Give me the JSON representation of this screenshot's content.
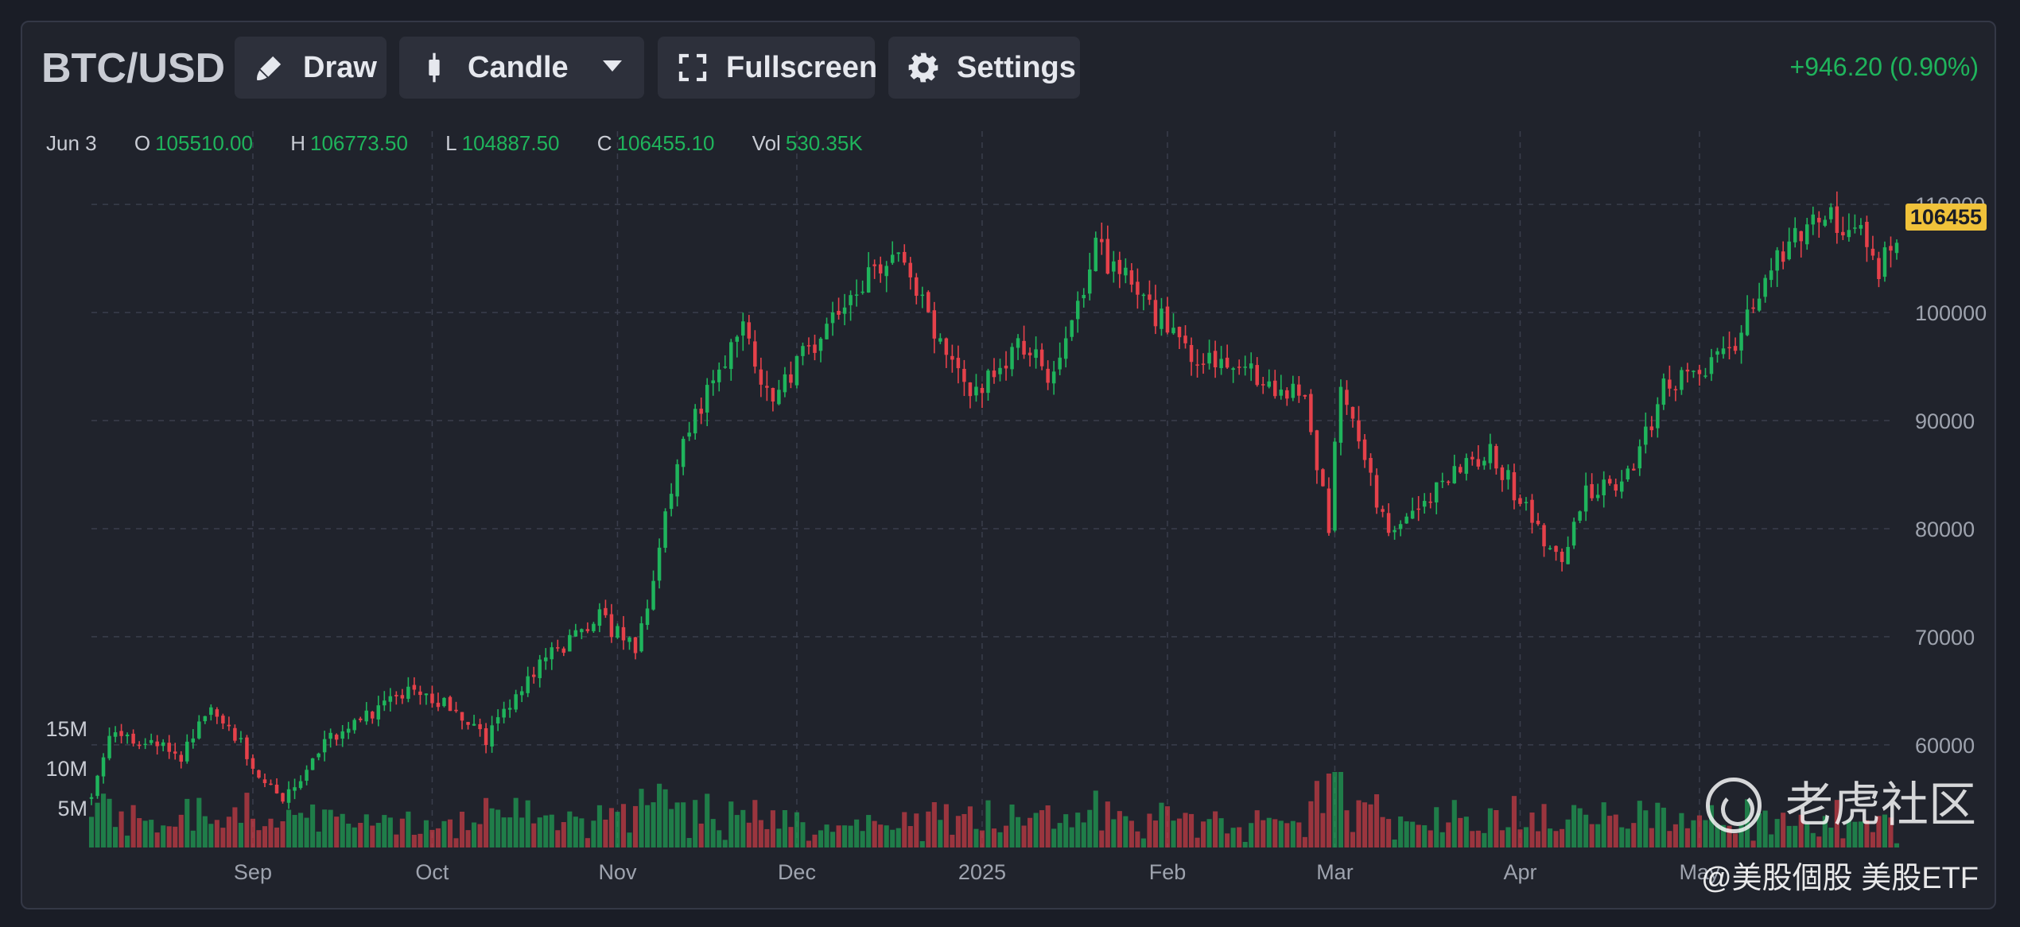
{
  "toolbar": {
    "symbol": "BTC/USD",
    "draw_label": "Draw",
    "chart_type_label": "Candle",
    "fullscreen_label": "Fullscreen",
    "settings_label": "Settings",
    "change_label": "+946.20 (0.90%)"
  },
  "ohlc_bar": {
    "date": "Jun 3",
    "open_key": "O",
    "open": "105510.00",
    "high_key": "H",
    "high": "106773.50",
    "low_key": "L",
    "low": "104887.50",
    "close_key": "C",
    "close": "106455.10",
    "vol_key": "Vol",
    "vol": "530.35K"
  },
  "last_price_tag": "106455",
  "watermark": {
    "brand": "老虎社区",
    "handle": "@美股個股 美股ETF"
  },
  "icons": {
    "draw": "brush-icon",
    "candle": "candlestick-icon",
    "dropdown": "caret-down-icon",
    "fullscreen": "fullscreen-icon",
    "settings": "gear-icon"
  },
  "colors": {
    "up": "#1fb45c",
    "down": "#e5414a",
    "background": "#20232c",
    "price_tag": "#f0c23a"
  },
  "chart_data": {
    "type": "candlestick",
    "grid": true,
    "y_axis": {
      "ticks": [
        "60000",
        "70000",
        "80000",
        "90000",
        "100000",
        "110000"
      ],
      "ylim": [
        53000,
        112000
      ]
    },
    "volume_axis": {
      "ticks": [
        "5M",
        "10M",
        "15M"
      ]
    },
    "x_axis": {
      "ticks": [
        "Sep",
        "Oct",
        "Nov",
        "Dec",
        "2025",
        "Feb",
        "Mar",
        "Apr",
        "May"
      ]
    },
    "x_range": [
      "2024-08-05",
      "2025-06-03"
    ],
    "waypoints": [
      [
        "2024-08-05",
        55000
      ],
      [
        "2024-08-08",
        61500
      ],
      [
        "2024-08-20",
        59000
      ],
      [
        "2024-08-25",
        64000
      ],
      [
        "2024-09-06",
        54500
      ],
      [
        "2024-09-13",
        60000
      ],
      [
        "2024-09-28",
        65800
      ],
      [
        "2024-10-10",
        60500
      ],
      [
        "2024-10-20",
        68000
      ],
      [
        "2024-10-29",
        72000
      ],
      [
        "2024-11-04",
        68500
      ],
      [
        "2024-11-12",
        88000
      ],
      [
        "2024-11-22",
        98500
      ],
      [
        "2024-11-26",
        92000
      ],
      [
        "2024-12-05",
        98000
      ],
      [
        "2024-12-17",
        106000
      ],
      [
        "2024-12-30",
        92500
      ],
      [
        "2025-01-07",
        97000
      ],
      [
        "2025-01-13",
        94000
      ],
      [
        "2025-01-20",
        106000
      ],
      [
        "2025-01-27",
        102000
      ],
      [
        "2025-02-03",
        97000
      ],
      [
        "2025-02-24",
        92000
      ],
      [
        "2025-02-28",
        80500
      ],
      [
        "2025-03-02",
        94000
      ],
      [
        "2025-03-10",
        79000
      ],
      [
        "2025-03-20",
        85000
      ],
      [
        "2025-03-27",
        87000
      ],
      [
        "2025-04-08",
        76500
      ],
      [
        "2025-04-12",
        83500
      ],
      [
        "2025-04-20",
        85000
      ],
      [
        "2025-04-25",
        93500
      ],
      [
        "2025-05-03",
        95000
      ],
      [
        "2025-05-08",
        98000
      ],
      [
        "2025-05-12",
        104000
      ],
      [
        "2025-05-21",
        109500
      ],
      [
        "2025-05-28",
        107500
      ],
      [
        "2025-05-31",
        104000
      ],
      [
        "2025-06-03",
        106455
      ]
    ],
    "last": {
      "date": "2025-06-03",
      "open": 105510.0,
      "high": 106773.5,
      "low": 104887.5,
      "close": 106455.1,
      "volume": "530.35K"
    }
  }
}
